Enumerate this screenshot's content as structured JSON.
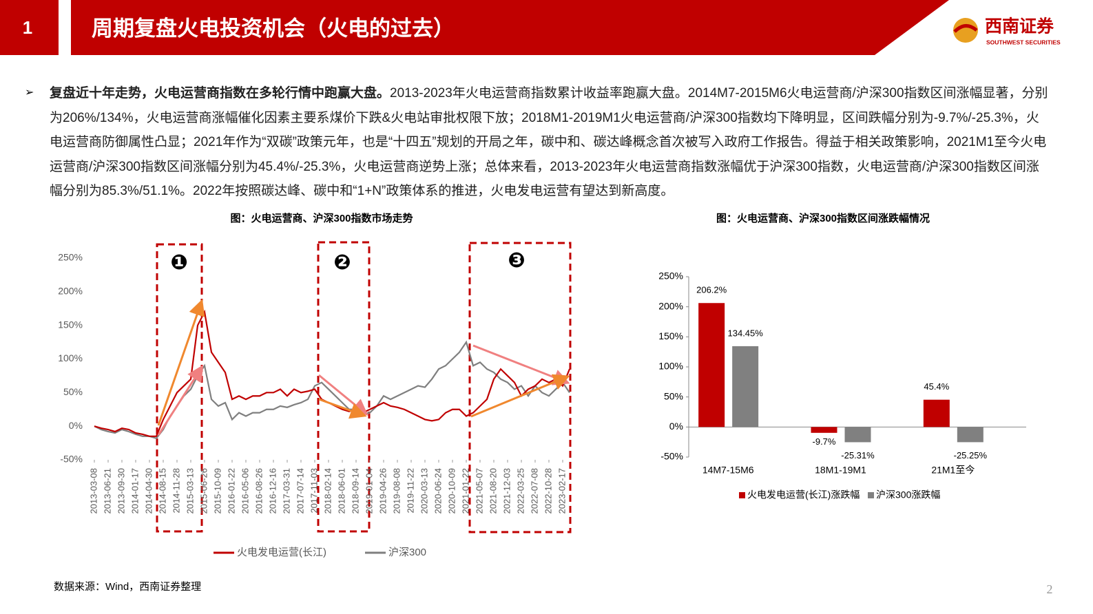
{
  "header": {
    "number": "1",
    "title": "周期复盘火电投资机会（火电的过去）",
    "logo": "西南证券",
    "logo_sub": "SOUTHWEST SECURITIES"
  },
  "bullet": {
    "bold": "复盘近十年走势，火电运营商指数在多轮行情中跑赢大盘。",
    "text": "2013-2023年火电运营商指数累计收益率跑赢大盘。2014M7-2015M6火电运营商/沪深300指数区间涨幅显著，分别为206%/134%，火电运营商涨幅催化因素主要系煤价下跌&火电站审批权限下放；2018M1-2019M1火电运营商/沪深300指数均下降明显，区间跌幅分别为-9.7%/-25.3%，火电运营商防御属性凸显；2021年作为“双碳”政策元年，也是“十四五”规划的开局之年，碳中和、碳达峰概念首次被写入政府工作报告。得益于相关政策影响，2021M1至今火电运营商/沪深300指数区间涨幅分别为45.4%/-25.3%，火电运营商逆势上涨；总体来看，2013-2023年火电运营商指数涨幅优于沪深300指数，火电运营商/沪深300指数区间涨幅分别为85.3%/51.1%。2022年按照碳达峰、碳中和“1+N”政策体系的推进，火电发电运营有望达到新高度。"
  },
  "chart_data": [
    {
      "type": "line",
      "title": "图：火电运营商、沪深300指数市场走势",
      "x": [
        "2013-03-08",
        null,
        "2013-06-21",
        null,
        "2013-09-30",
        null,
        "2014-01-17",
        null,
        "2014-04-30",
        null,
        "2014-08-15",
        null,
        "2014-11-28",
        null,
        "2015-03-13",
        null,
        "2015-06-26",
        null,
        "2015-10-09",
        null,
        "2016-01-22",
        null,
        "2016-05-06",
        null,
        "2016-08-26",
        null,
        "2016-12-16",
        null,
        "2017-03-31",
        null,
        "2017-07-14",
        null,
        "2017-11-03",
        null,
        "2018-02-14",
        null,
        "2018-06-01",
        null,
        "2018-09-14",
        null,
        "2019-01-04",
        null,
        "2019-04-26",
        null,
        "2019-08-08",
        null,
        "2019-11-22",
        null,
        "2020-03-13",
        null,
        "2020-06-24",
        null,
        "2020-10-09",
        null,
        "2021-01-22",
        null,
        "2021-05-07",
        null,
        "2021-08-20",
        null,
        "2021-12-03",
        null,
        "2022-03-25",
        null,
        "2022-07-08",
        null,
        "2022-10-28",
        null,
        "2023-02-17",
        null
      ],
      "series": [
        {
          "name": "火电发电运营(长江)",
          "color": "#c00000",
          "values": [
            0,
            -3,
            -5,
            -8,
            -3,
            -5,
            -10,
            -12,
            -15,
            -15,
            10,
            30,
            50,
            60,
            70,
            150,
            170,
            110,
            95,
            80,
            40,
            45,
            40,
            45,
            45,
            50,
            50,
            55,
            45,
            55,
            50,
            52,
            55,
            40,
            35,
            30,
            25,
            22,
            25,
            20,
            25,
            30,
            35,
            30,
            28,
            25,
            20,
            15,
            10,
            8,
            10,
            20,
            25,
            25,
            15,
            20,
            30,
            40,
            70,
            85,
            75,
            65,
            45,
            55,
            60,
            70,
            65,
            70,
            60,
            85
          ]
        },
        {
          "name": "沪深300",
          "color": "#7f7f7f",
          "values": [
            0,
            -5,
            -8,
            -10,
            -5,
            -8,
            -12,
            -15,
            -15,
            -18,
            -5,
            15,
            30,
            45,
            55,
            75,
            90,
            40,
            30,
            35,
            10,
            20,
            15,
            20,
            20,
            25,
            25,
            30,
            28,
            32,
            35,
            40,
            60,
            65,
            55,
            45,
            35,
            25,
            25,
            18,
            20,
            30,
            45,
            40,
            45,
            50,
            55,
            60,
            58,
            70,
            85,
            90,
            100,
            110,
            125,
            90,
            95,
            85,
            80,
            70,
            65,
            55,
            60,
            45,
            60,
            50,
            45,
            55,
            65,
            50
          ]
        }
      ],
      "ylim": [
        -50,
        250
      ],
      "yticks": [
        {
          "value": -50,
          "label": "-50%"
        },
        {
          "value": 0,
          "label": "0%"
        },
        {
          "value": 50,
          "label": "50%"
        },
        {
          "value": 100,
          "label": "100%"
        },
        {
          "value": 150,
          "label": "150%"
        },
        {
          "value": 200,
          "label": "200%"
        },
        {
          "value": 250,
          "label": "250%"
        }
      ],
      "annotations": [
        "❶",
        "❷",
        "❸"
      ],
      "legend": "bottom"
    },
    {
      "type": "bar",
      "title": "图：火电运营商、沪深300指数区间涨跌幅情况",
      "categories": [
        "14M7-15M6",
        "18M1-19M1",
        "21M1至今"
      ],
      "series": [
        {
          "name": "火电发电运营(长江)涨跌幅",
          "color": "#c00000",
          "values": [
            206.2,
            -9.7,
            45.4
          ],
          "value_labels": [
            "206.2%",
            "-9.7%",
            "45.4%"
          ]
        },
        {
          "name": "沪深300涨跌幅",
          "color": "#808080",
          "values": [
            134.45,
            -25.31,
            -25.25
          ],
          "value_labels": [
            "134.45%",
            "-25.31%",
            "-25.25%"
          ]
        }
      ],
      "ylim": [
        -50,
        250
      ],
      "yticks": [
        {
          "value": -50,
          "label": "-50%"
        },
        {
          "value": 0,
          "label": "0%"
        },
        {
          "value": 50,
          "label": "50%"
        },
        {
          "value": 100,
          "label": "100%"
        },
        {
          "value": 150,
          "label": "150%"
        },
        {
          "value": 200,
          "label": "200%"
        },
        {
          "value": 250,
          "label": "250%"
        }
      ],
      "legend": "bottom"
    }
  ],
  "source": "数据来源：Wind，西南证券整理",
  "page_number": "2"
}
